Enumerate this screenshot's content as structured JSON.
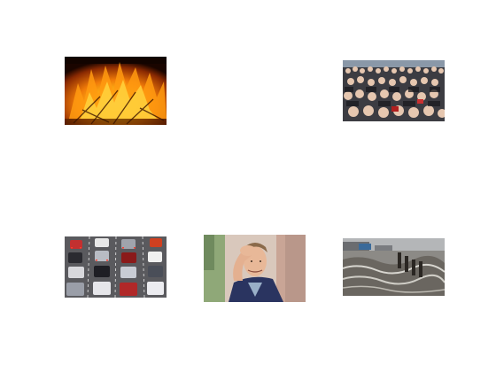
{
  "figure": {
    "background": "#ffffff",
    "panels": [
      {
        "id": "panel-1",
        "subject": "fire-image"
      },
      {
        "id": "panel-2",
        "subject": "crowd-image"
      },
      {
        "id": "panel-3",
        "subject": "traffic-jam-image"
      },
      {
        "id": "panel-4",
        "subject": "stressed-man-image"
      },
      {
        "id": "panel-5",
        "subject": "flooded-street-image"
      }
    ]
  }
}
